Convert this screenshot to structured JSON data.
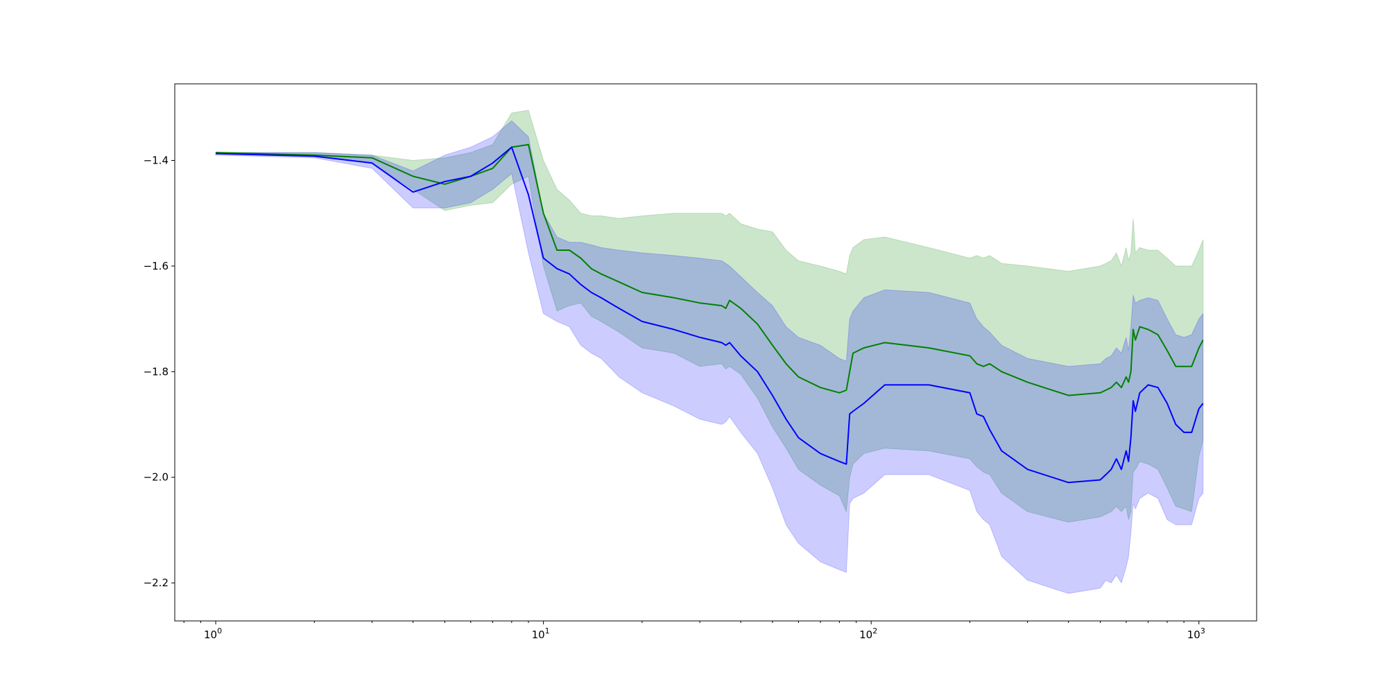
{
  "chart_data": {
    "type": "area",
    "title": "",
    "xlabel": "",
    "ylabel": "",
    "x_scale": "log",
    "xlim": [
      0.75,
      1500
    ],
    "ylim": [
      -2.272,
      -1.255
    ],
    "grid": false,
    "legend": "none",
    "x_ticks": [
      {
        "value": 1,
        "base": "10",
        "exp": "0"
      },
      {
        "value": 10,
        "base": "10",
        "exp": "1"
      },
      {
        "value": 100,
        "base": "10",
        "exp": "2"
      },
      {
        "value": 1000,
        "base": "10",
        "exp": "3"
      }
    ],
    "y_ticks": [
      {
        "value": -1.4,
        "label": "−1.4"
      },
      {
        "value": -1.6,
        "label": "−1.6"
      },
      {
        "value": -1.8,
        "label": "−1.8"
      },
      {
        "value": -2.0,
        "label": "−2.0"
      },
      {
        "value": -2.2,
        "label": "−2.2"
      }
    ],
    "series": [
      {
        "color": "#008000",
        "band_color": "#008000",
        "band_opacity": 0.2,
        "x": [
          1,
          2,
          3,
          4,
          5,
          6,
          7,
          8,
          9,
          10,
          11,
          12,
          13,
          14,
          15,
          17,
          20,
          25,
          30,
          35,
          36,
          37,
          40,
          45,
          50,
          55,
          60,
          70,
          80,
          84,
          86,
          88,
          95,
          110,
          150,
          200,
          210,
          220,
          230,
          250,
          300,
          400,
          500,
          520,
          540,
          560,
          580,
          600,
          610,
          620,
          630,
          640,
          660,
          700,
          750,
          800,
          850,
          900,
          950,
          1000,
          1030
        ],
        "mean": [
          -1.385,
          -1.39,
          -1.395,
          -1.43,
          -1.445,
          -1.43,
          -1.415,
          -1.375,
          -1.37,
          -1.5,
          -1.57,
          -1.57,
          -1.585,
          -1.605,
          -1.615,
          -1.63,
          -1.65,
          -1.66,
          -1.67,
          -1.675,
          -1.68,
          -1.665,
          -1.68,
          -1.71,
          -1.75,
          -1.785,
          -1.81,
          -1.83,
          -1.84,
          -1.835,
          -1.8,
          -1.765,
          -1.755,
          -1.745,
          -1.755,
          -1.77,
          -1.785,
          -1.79,
          -1.785,
          -1.8,
          -1.82,
          -1.845,
          -1.84,
          -1.835,
          -1.83,
          -1.82,
          -1.83,
          -1.81,
          -1.82,
          -1.8,
          -1.72,
          -1.74,
          -1.715,
          -1.72,
          -1.73,
          -1.76,
          -1.79,
          -1.79,
          -1.79,
          -1.755,
          -1.74
        ],
        "upper": [
          -1.385,
          -1.385,
          -1.39,
          -1.4,
          -1.395,
          -1.385,
          -1.37,
          -1.31,
          -1.305,
          -1.4,
          -1.455,
          -1.475,
          -1.5,
          -1.505,
          -1.505,
          -1.51,
          -1.505,
          -1.5,
          -1.5,
          -1.5,
          -1.505,
          -1.5,
          -1.52,
          -1.53,
          -1.535,
          -1.57,
          -1.59,
          -1.6,
          -1.61,
          -1.615,
          -1.58,
          -1.565,
          -1.55,
          -1.545,
          -1.565,
          -1.585,
          -1.58,
          -1.585,
          -1.58,
          -1.595,
          -1.6,
          -1.61,
          -1.6,
          -1.595,
          -1.59,
          -1.575,
          -1.6,
          -1.565,
          -1.59,
          -1.575,
          -1.51,
          -1.575,
          -1.565,
          -1.57,
          -1.57,
          -1.585,
          -1.6,
          -1.6,
          -1.6,
          -1.57,
          -1.55
        ],
        "lower": [
          -1.385,
          -1.39,
          -1.405,
          -1.455,
          -1.495,
          -1.485,
          -1.48,
          -1.445,
          -1.43,
          -1.6,
          -1.685,
          -1.675,
          -1.67,
          -1.695,
          -1.705,
          -1.725,
          -1.755,
          -1.765,
          -1.79,
          -1.785,
          -1.795,
          -1.79,
          -1.805,
          -1.85,
          -1.905,
          -1.945,
          -1.985,
          -2.015,
          -2.035,
          -2.065,
          -2.0,
          -1.975,
          -1.955,
          -1.945,
          -1.95,
          -1.965,
          -1.98,
          -1.99,
          -1.995,
          -2.03,
          -2.065,
          -2.085,
          -2.075,
          -2.07,
          -2.065,
          -2.055,
          -2.065,
          -2.055,
          -2.08,
          -2.065,
          -1.99,
          -1.985,
          -1.97,
          -1.975,
          -1.985,
          -2.02,
          -2.055,
          -2.06,
          -2.065,
          -1.96,
          -1.93
        ]
      },
      {
        "color": "#0000ff",
        "band_color": "#0000ff",
        "band_opacity": 0.2,
        "x": [
          1,
          2,
          3,
          4,
          5,
          6,
          7,
          8,
          9,
          10,
          11,
          12,
          13,
          14,
          15,
          17,
          20,
          25,
          30,
          35,
          36,
          37,
          40,
          45,
          50,
          55,
          60,
          70,
          80,
          84,
          86,
          88,
          95,
          110,
          150,
          200,
          210,
          220,
          230,
          250,
          300,
          400,
          500,
          520,
          540,
          560,
          580,
          600,
          610,
          620,
          630,
          640,
          660,
          700,
          750,
          800,
          850,
          900,
          950,
          1000,
          1030
        ],
        "mean": [
          -1.387,
          -1.392,
          -1.405,
          -1.46,
          -1.44,
          -1.43,
          -1.405,
          -1.375,
          -1.465,
          -1.585,
          -1.605,
          -1.615,
          -1.635,
          -1.65,
          -1.66,
          -1.68,
          -1.705,
          -1.72,
          -1.735,
          -1.745,
          -1.75,
          -1.745,
          -1.77,
          -1.8,
          -1.845,
          -1.89,
          -1.925,
          -1.955,
          -1.97,
          -1.975,
          -1.88,
          -1.875,
          -1.86,
          -1.825,
          -1.825,
          -1.84,
          -1.88,
          -1.885,
          -1.91,
          -1.95,
          -1.985,
          -2.01,
          -2.005,
          -1.995,
          -1.985,
          -1.965,
          -1.985,
          -1.95,
          -1.97,
          -1.925,
          -1.855,
          -1.875,
          -1.84,
          -1.825,
          -1.83,
          -1.86,
          -1.9,
          -1.915,
          -1.915,
          -1.87,
          -1.86
        ],
        "upper": [
          -1.385,
          -1.385,
          -1.39,
          -1.42,
          -1.39,
          -1.375,
          -1.355,
          -1.325,
          -1.355,
          -1.5,
          -1.545,
          -1.555,
          -1.555,
          -1.56,
          -1.565,
          -1.57,
          -1.575,
          -1.58,
          -1.585,
          -1.59,
          -1.595,
          -1.6,
          -1.62,
          -1.65,
          -1.675,
          -1.715,
          -1.735,
          -1.75,
          -1.775,
          -1.78,
          -1.7,
          -1.685,
          -1.66,
          -1.645,
          -1.65,
          -1.67,
          -1.7,
          -1.715,
          -1.725,
          -1.75,
          -1.775,
          -1.79,
          -1.785,
          -1.775,
          -1.77,
          -1.755,
          -1.765,
          -1.735,
          -1.76,
          -1.715,
          -1.655,
          -1.67,
          -1.665,
          -1.66,
          -1.665,
          -1.7,
          -1.73,
          -1.735,
          -1.73,
          -1.7,
          -1.69
        ],
        "lower": [
          -1.39,
          -1.395,
          -1.415,
          -1.49,
          -1.49,
          -1.48,
          -1.455,
          -1.425,
          -1.575,
          -1.69,
          -1.705,
          -1.715,
          -1.75,
          -1.765,
          -1.775,
          -1.81,
          -1.84,
          -1.865,
          -1.89,
          -1.9,
          -1.895,
          -1.885,
          -1.915,
          -1.955,
          -2.02,
          -2.09,
          -2.125,
          -2.16,
          -2.175,
          -2.18,
          -2.05,
          -2.04,
          -2.03,
          -1.995,
          -1.995,
          -2.025,
          -2.065,
          -2.08,
          -2.09,
          -2.15,
          -2.195,
          -2.22,
          -2.21,
          -2.195,
          -2.2,
          -2.185,
          -2.2,
          -2.17,
          -2.15,
          -2.105,
          -2.05,
          -2.06,
          -2.04,
          -2.03,
          -2.04,
          -2.08,
          -2.09,
          -2.09,
          -2.09,
          -2.04,
          -2.03
        ]
      }
    ]
  }
}
